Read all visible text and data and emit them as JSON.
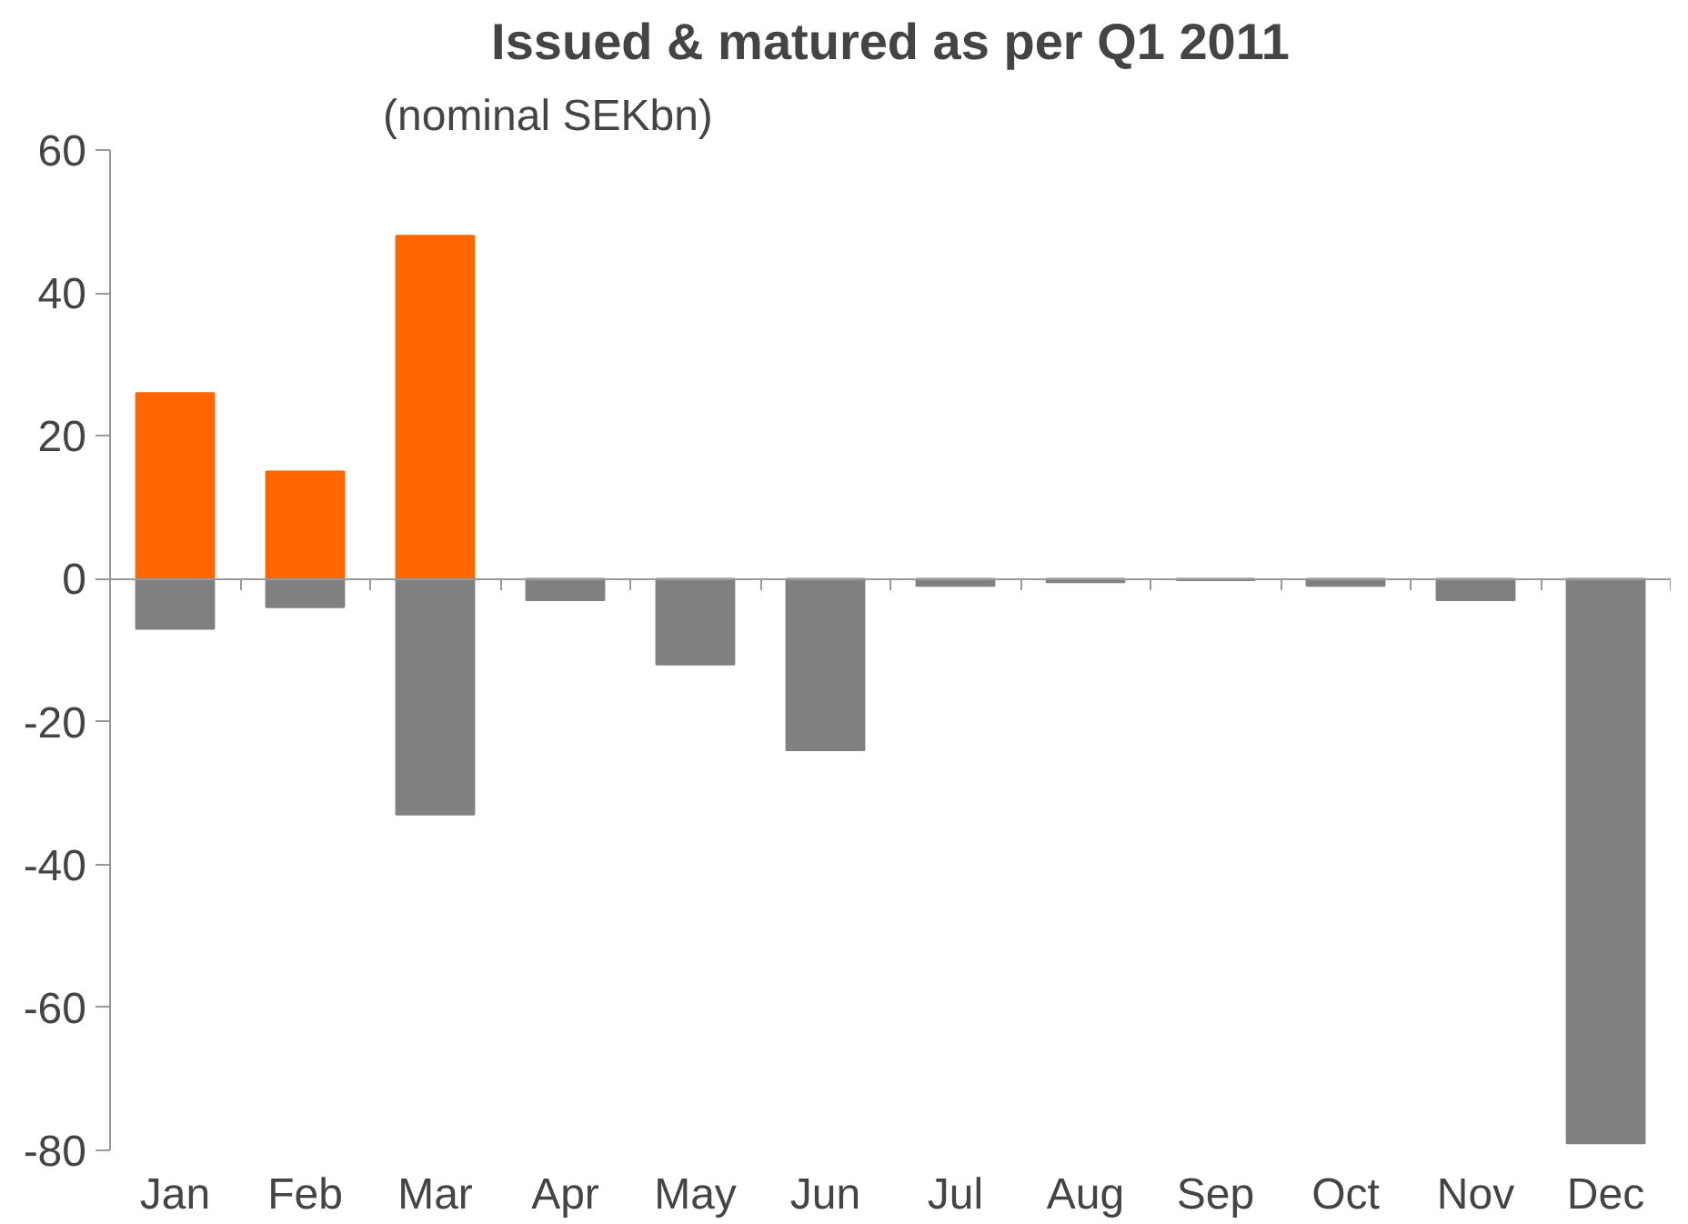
{
  "chart_data": {
    "type": "bar",
    "title": "Issued & matured as per Q1 2011",
    "subtitle": "(nominal SEKbn)",
    "categories": [
      "Jan",
      "Feb",
      "Mar",
      "Apr",
      "May",
      "Jun",
      "Jul",
      "Aug",
      "Sep",
      "Oct",
      "Nov",
      "Dec"
    ],
    "series": [
      {
        "color": "#ff6600",
        "values": [
          26,
          15,
          48,
          null,
          null,
          null,
          null,
          null,
          null,
          null,
          null,
          null
        ]
      },
      {
        "color": "#808080",
        "values": [
          -7,
          -4,
          -33,
          -3,
          -12,
          -24,
          -1,
          -0.5,
          -0.2,
          -1,
          -3,
          -79
        ]
      }
    ],
    "ylim": [
      -80,
      60
    ],
    "yticks": [
      -80,
      -60,
      -40,
      -20,
      0,
      20,
      40,
      60
    ]
  }
}
